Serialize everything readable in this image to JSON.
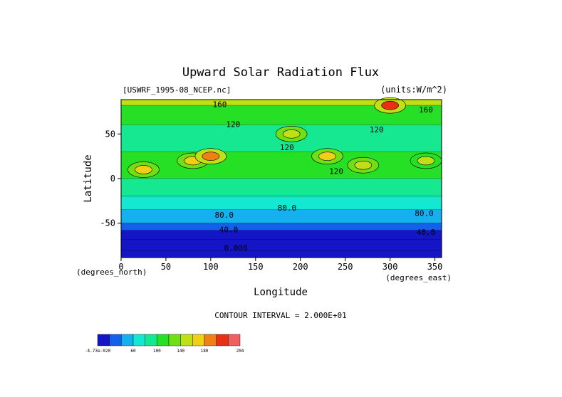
{
  "chart_data": {
    "type": "heatmap",
    "title": "Upward Solar Radiation Flux",
    "file_label": "[USWRF_1995-08_NCEP.nc]",
    "units_label": "(units:W/m^2)",
    "xlabel": "Longitude",
    "ylabel": "Latitude",
    "x_unit_label": "(degrees_east)",
    "y_unit_label": "(degrees_north)",
    "xlim": [
      0,
      357.5
    ],
    "ylim": [
      -88.5,
      88.5
    ],
    "x_ticks": [
      0,
      50,
      100,
      150,
      200,
      250,
      300,
      350
    ],
    "y_ticks": [
      50,
      0,
      -50
    ],
    "contour_interval_text": "CONTOUR INTERVAL = 2.000E+01",
    "contour_labels": [
      {
        "text": "160",
        "lon": 110,
        "lat": 80
      },
      {
        "text": "120",
        "lon": 125,
        "lat": 58
      },
      {
        "text": "120",
        "lon": 185,
        "lat": 32
      },
      {
        "text": "120",
        "lon": 285,
        "lat": 52
      },
      {
        "text": "160",
        "lon": 340,
        "lat": 74
      },
      {
        "text": "120",
        "lon": 240,
        "lat": 5
      },
      {
        "text": "80.0",
        "lon": 115,
        "lat": -44
      },
      {
        "text": "80.0",
        "lon": 185,
        "lat": -36
      },
      {
        "text": "80.0",
        "lon": 338,
        "lat": -42
      },
      {
        "text": "40.0",
        "lon": 120,
        "lat": -60
      },
      {
        "text": "40.0",
        "lon": 340,
        "lat": -63
      },
      {
        "text": "0.000",
        "lon": 128,
        "lat": -81
      }
    ],
    "colorbar": {
      "labels": [
        "-4.73e-020",
        "60",
        "100",
        "140",
        "180",
        "204"
      ],
      "colors": [
        "#1515c8",
        "#1560e8",
        "#15b0f0",
        "#15e8d0",
        "#15e890",
        "#25e025",
        "#70e015",
        "#c0e015",
        "#f0d015",
        "#f08015",
        "#e83015",
        "#f06060"
      ]
    },
    "zonal_bands": [
      {
        "lat_from": 88.5,
        "lat_to": 82,
        "value": 170
      },
      {
        "lat_from": 82,
        "lat_to": 60,
        "value": 120
      },
      {
        "lat_from": 60,
        "lat_to": 30,
        "value": 110
      },
      {
        "lat_from": 30,
        "lat_to": 0,
        "value": 120
      },
      {
        "lat_from": 0,
        "lat_to": -20,
        "value": 105
      },
      {
        "lat_from": -20,
        "lat_to": -35,
        "value": 85
      },
      {
        "lat_from": -35,
        "lat_to": -50,
        "value": 75
      },
      {
        "lat_from": -50,
        "lat_to": -58,
        "value": 55
      },
      {
        "lat_from": -58,
        "lat_to": -68,
        "value": 38
      },
      {
        "lat_from": -68,
        "lat_to": -80,
        "value": 10
      },
      {
        "lat_from": -80,
        "lat_to": -88.5,
        "value": 0
      }
    ],
    "hotspots": [
      {
        "lon": 25,
        "lat": 10,
        "value": 180
      },
      {
        "lon": 80,
        "lat": 20,
        "value": 185
      },
      {
        "lon": 100,
        "lat": 25,
        "value": 190
      },
      {
        "lon": 190,
        "lat": 50,
        "value": 175
      },
      {
        "lon": 230,
        "lat": 25,
        "value": 180
      },
      {
        "lon": 270,
        "lat": 15,
        "value": 175
      },
      {
        "lon": 340,
        "lat": 20,
        "value": 160
      },
      {
        "lon": 300,
        "lat": 82,
        "value": 200
      }
    ]
  }
}
